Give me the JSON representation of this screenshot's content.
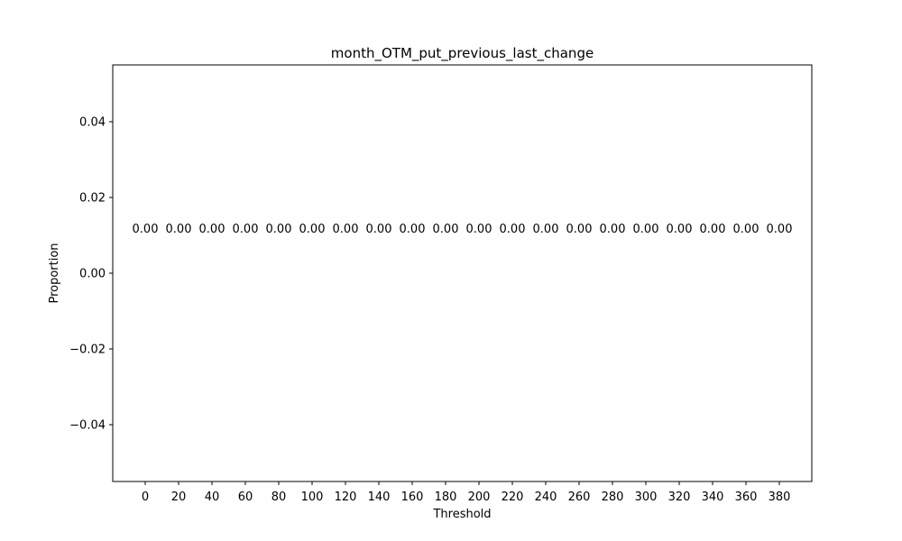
{
  "chart_data": {
    "type": "bar",
    "title": "month_OTM_put_previous_last_change",
    "xlabel": "Threshold",
    "ylabel": "Proportion",
    "categories": [
      "0",
      "20",
      "40",
      "60",
      "80",
      "100",
      "120",
      "140",
      "160",
      "180",
      "200",
      "220",
      "240",
      "260",
      "280",
      "300",
      "320",
      "340",
      "360",
      "380"
    ],
    "values": [
      0,
      0,
      0,
      0,
      0,
      0,
      0,
      0,
      0,
      0,
      0,
      0,
      0,
      0,
      0,
      0,
      0,
      0,
      0,
      0
    ],
    "data_labels": [
      "0.00",
      "0.00",
      "0.00",
      "0.00",
      "0.00",
      "0.00",
      "0.00",
      "0.00",
      "0.00",
      "0.00",
      "0.00",
      "0.00",
      "0.00",
      "0.00",
      "0.00",
      "0.00",
      "0.00",
      "0.00",
      "0.00",
      "0.00"
    ],
    "ylim": [
      -0.055,
      0.055
    ],
    "yticks": [
      -0.04,
      -0.02,
      0.0,
      0.02,
      0.04
    ],
    "ytick_labels": [
      "−0.04",
      "−0.02",
      "0.00",
      "0.02",
      "0.04"
    ],
    "grid": false,
    "colors": {
      "bar": "#1f77b4",
      "axes": "#000000"
    }
  }
}
